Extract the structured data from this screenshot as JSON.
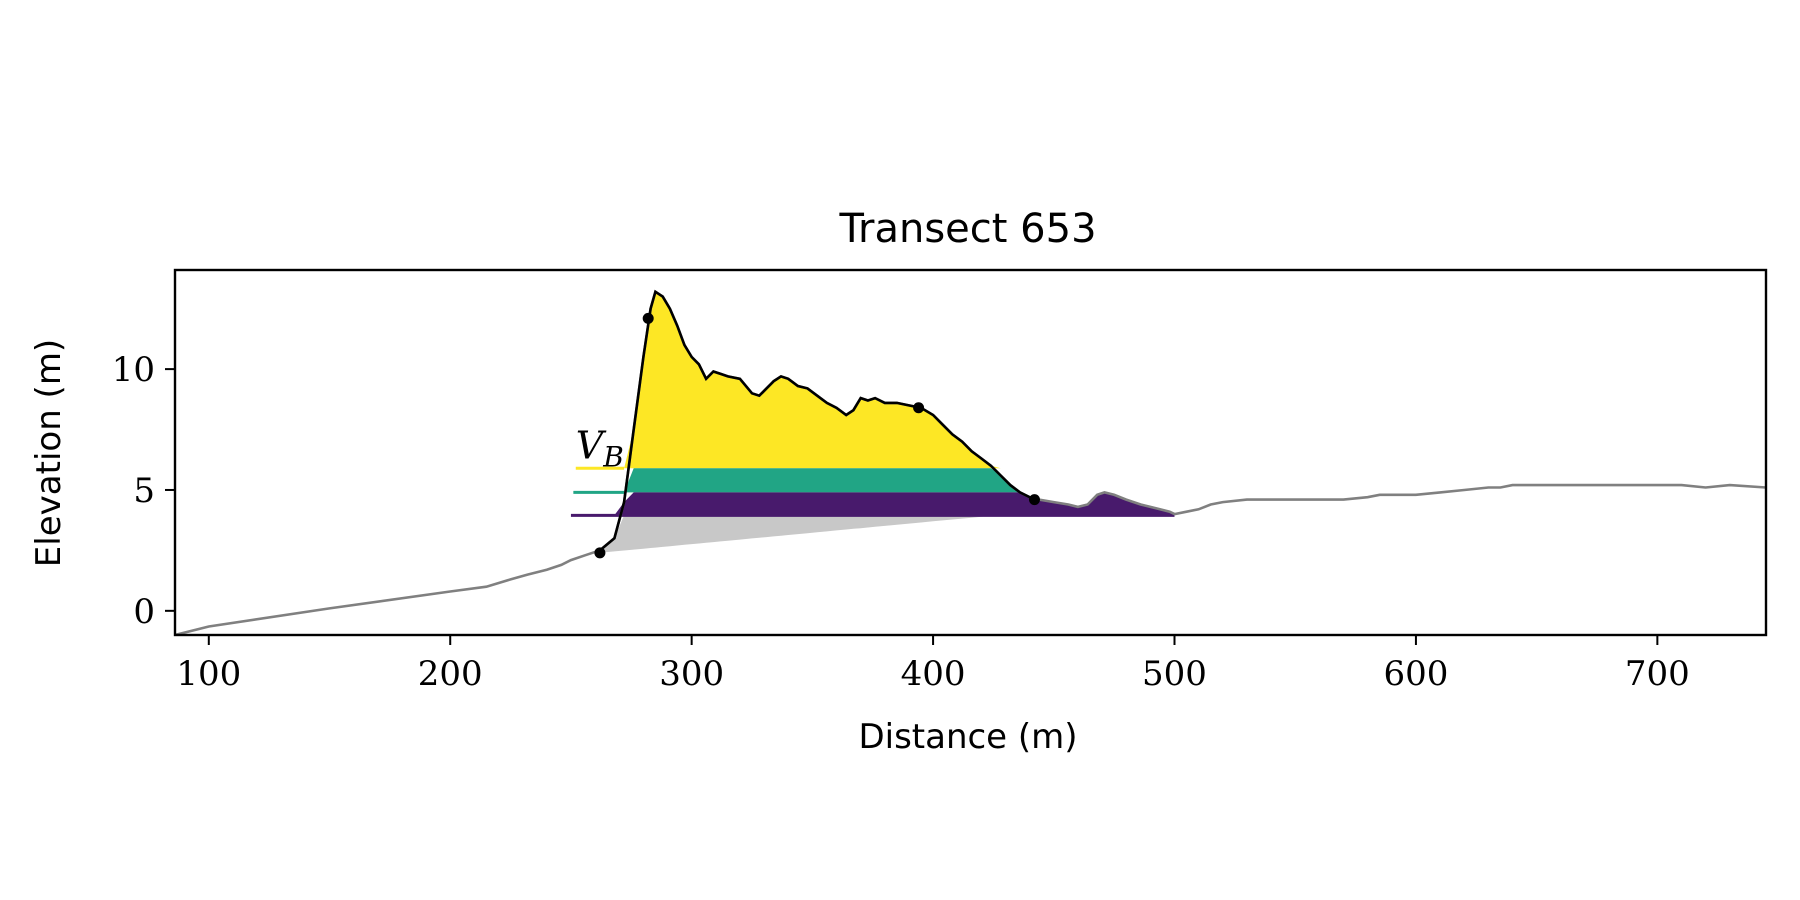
{
  "chart_data": {
    "type": "area",
    "title": "Transect 653",
    "xlabel": "Distance (m)",
    "ylabel": "Elevation (m)",
    "xlim": [
      86,
      745
    ],
    "ylim": [
      -1,
      14.1
    ],
    "xticks": [
      100,
      200,
      300,
      400,
      500,
      600,
      700
    ],
    "yticks": [
      0,
      5,
      10
    ],
    "grid": false,
    "series": [
      {
        "role": "full-profile",
        "color": "#808080",
        "x": [
          86,
          100,
          150,
          200,
          215,
          225,
          232,
          240,
          246,
          250,
          256,
          262,
          268,
          272,
          276,
          280,
          283,
          285,
          288,
          291,
          294,
          297,
          300,
          303,
          306,
          309,
          312,
          315,
          320,
          325,
          328,
          331,
          334,
          337,
          340,
          344,
          348,
          352,
          356,
          360,
          364,
          367,
          370,
          373,
          376,
          380,
          385,
          390,
          395,
          400,
          404,
          408,
          412,
          416,
          420,
          424,
          428,
          432,
          436,
          440,
          444,
          450,
          456,
          460,
          464,
          468,
          471,
          475,
          480,
          486,
          490,
          494,
          498,
          500,
          505,
          510,
          515,
          520,
          530,
          535,
          540,
          550,
          560,
          570,
          580,
          585,
          590,
          595,
          600,
          610,
          620,
          630,
          635,
          640,
          650,
          660,
          670,
          680,
          690,
          700,
          710,
          720,
          730,
          745
        ],
        "y": [
          -1,
          -0.65,
          0.1,
          0.8,
          1.0,
          1.3,
          1.5,
          1.7,
          1.9,
          2.1,
          2.3,
          2.5,
          3.0,
          4.5,
          7.5,
          10.5,
          12.5,
          13.2,
          13.0,
          12.5,
          11.8,
          11.0,
          10.5,
          10.2,
          9.6,
          9.9,
          9.8,
          9.7,
          9.6,
          9.0,
          8.9,
          9.2,
          9.5,
          9.7,
          9.6,
          9.3,
          9.2,
          8.9,
          8.6,
          8.4,
          8.1,
          8.3,
          8.8,
          8.7,
          8.8,
          8.6,
          8.6,
          8.5,
          8.4,
          8.1,
          7.7,
          7.3,
          7.0,
          6.6,
          6.3,
          6.0,
          5.6,
          5.2,
          4.9,
          4.7,
          4.6,
          4.5,
          4.4,
          4.3,
          4.4,
          4.8,
          4.9,
          4.8,
          4.6,
          4.4,
          4.3,
          4.2,
          4.1,
          4.0,
          4.1,
          4.2,
          4.4,
          4.5,
          4.6,
          4.6,
          4.6,
          4.6,
          4.6,
          4.6,
          4.7,
          4.8,
          4.8,
          4.8,
          4.8,
          4.9,
          5.0,
          5.1,
          5.1,
          5.2,
          5.2,
          5.2,
          5.2,
          5.2,
          5.2,
          5.2,
          5.2,
          5.1,
          5.2,
          5.1
        ]
      },
      {
        "role": "dune-profile",
        "color": "#000000",
        "x_range": [
          262,
          442
        ]
      }
    ],
    "markers": [
      {
        "x": 262,
        "y": 2.4
      },
      {
        "x": 282,
        "y": 12.1
      },
      {
        "x": 394,
        "y": 8.4
      },
      {
        "x": 442,
        "y": 4.6
      }
    ],
    "base_line": {
      "from": [
        262,
        2.4
      ],
      "to": [
        442,
        4.1
      ],
      "fill": "#c8c8c8"
    },
    "layers": [
      {
        "name": "top",
        "color": "#fde725",
        "y_min": 5.9,
        "y_max": 14.1,
        "line_x": [
          252,
          272
        ]
      },
      {
        "name": "middle",
        "color": "#21a585",
        "y_min": 4.9,
        "y_max": 5.9,
        "line_x": [
          251,
          272
        ]
      },
      {
        "name": "bottom",
        "color": "#481a6c",
        "y_min": 3.95,
        "y_max": 4.9,
        "line_x": [
          250,
          500
        ]
      }
    ],
    "annotation": {
      "text": "V",
      "subscript": "B",
      "x": 252,
      "y": 6.3
    }
  }
}
